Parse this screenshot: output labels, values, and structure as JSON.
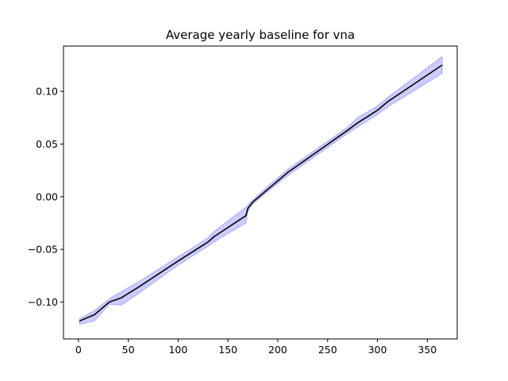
{
  "chart_data": {
    "type": "line",
    "title": "Average yearly baseline for vna",
    "xlabel": "",
    "ylabel": "",
    "xlim": [
      -15,
      380
    ],
    "ylim": [
      -0.135,
      0.143
    ],
    "xticks": [
      0,
      50,
      100,
      150,
      200,
      250,
      300,
      350
    ],
    "yticks": [
      -0.1,
      -0.05,
      0.0,
      0.05,
      0.1
    ],
    "ytick_labels": [
      "−0.10",
      "−0.05",
      "0.00",
      "0.05",
      "0.10"
    ],
    "grid": false,
    "colors": {
      "line": "#000000",
      "band": "#0000ff",
      "band_opacity": 0.2
    },
    "series": [
      {
        "x": [
          1,
          16,
          31,
          43,
          60,
          100,
          130,
          136,
          168,
          170,
          175,
          190,
          210,
          240,
          270,
          280,
          300,
          310,
          365
        ],
        "values": [
          -0.118,
          -0.112,
          -0.1,
          -0.096,
          -0.086,
          -0.061,
          -0.043,
          -0.038,
          -0.018,
          -0.011,
          -0.005,
          0.007,
          0.023,
          0.043,
          0.063,
          0.07,
          0.082,
          0.09,
          0.125
        ]
      }
    ],
    "bands": [
      {
        "x": [
          1,
          16,
          31,
          43,
          60,
          100,
          130,
          136,
          168,
          170,
          175,
          190,
          210,
          240,
          270,
          280,
          300,
          310,
          365
        ],
        "lower": [
          -0.121,
          -0.118,
          -0.102,
          -0.103,
          -0.092,
          -0.065,
          -0.047,
          -0.043,
          -0.025,
          -0.014,
          -0.007,
          0.005,
          0.02,
          0.04,
          0.06,
          0.066,
          0.078,
          0.085,
          0.117
        ],
        "upper": [
          -0.116,
          -0.108,
          -0.097,
          -0.09,
          -0.081,
          -0.057,
          -0.039,
          -0.033,
          -0.01,
          -0.008,
          -0.003,
          0.01,
          0.026,
          0.046,
          0.066,
          0.075,
          0.086,
          0.094,
          0.133
        ]
      }
    ]
  }
}
